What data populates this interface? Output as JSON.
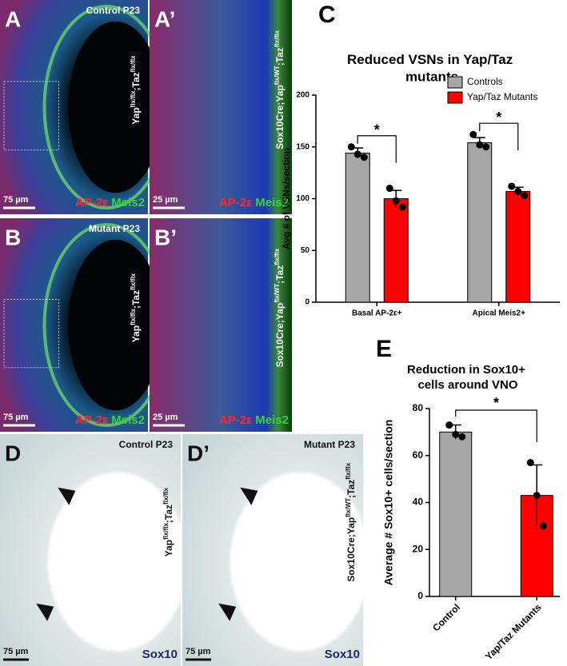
{
  "panels": [
    {
      "letter": "A",
      "title": "Control P23",
      "genotype": [
        "Yap",
        "flx/flx",
        ";Taz",
        "flx/flx"
      ],
      "scale": "75 µm",
      "stain": [
        "AP-2ε",
        "Meis2"
      ]
    },
    {
      "letter": "A’",
      "genotype": [
        "Sox10Cre;Yap",
        "flx/WT",
        ";Taz",
        "flx/flx"
      ],
      "scale": "25 µm",
      "stain": [
        "AP-2ε",
        "Meis2"
      ]
    },
    {
      "letter": "B",
      "title": "Mutant P23",
      "genotype": [
        "Yap",
        "flx/flx",
        ";Taz",
        "flx/flx"
      ],
      "scale": "75 µm",
      "stain": [
        "AP-2ε",
        "Meis2"
      ]
    },
    {
      "letter": "B’",
      "genotype": [
        "Sox10Cre;Yap",
        "flx/WT",
        ";Taz",
        "flx/flx"
      ],
      "scale": "25 µm",
      "stain": [
        "AP-2ε",
        "Meis2"
      ]
    },
    {
      "letter": "D",
      "title": "Control P23",
      "genotype": [
        "Yap",
        "flx/flx",
        ";Taz",
        "flx/flx"
      ],
      "scale": "75 µm",
      "stain": [
        "Sox10"
      ]
    },
    {
      "letter": "D’",
      "title": "Mutant P23",
      "genotype": [
        "Sox10Cre;Yap",
        "flx/WT",
        ";Taz",
        "flx/flx"
      ],
      "scale": "75 µm",
      "stain": [
        "Sox10"
      ]
    }
  ],
  "chart_data": [
    {
      "type": "grouped-bar",
      "letter": "C",
      "title": "Reduced VSNs in Yap/Taz mutants",
      "ylabel": "Avg # of VSNs/section",
      "categories": [
        "Basal AP-2ε+",
        "Apical Meis2+"
      ],
      "series": [
        {
          "name": "Controls",
          "color": "#a6a6a6",
          "values": [
            144,
            154
          ],
          "errors": [
            5,
            5
          ],
          "points": [
            [
              150,
              143,
              140
            ],
            [
              162,
              152,
              150
            ]
          ]
        },
        {
          "name": "Yap/Taz Mutants",
          "color": "#ff0000",
          "values": [
            100,
            107
          ],
          "errors": [
            8,
            4
          ],
          "points": [
            [
              110,
              98,
              92
            ],
            [
              112,
              107,
              103
            ]
          ]
        }
      ],
      "annotations": [
        "*",
        "*"
      ],
      "ylim": [
        0,
        200
      ],
      "yticks": [
        0,
        50,
        100,
        150,
        200
      ],
      "legend": "top-right"
    },
    {
      "type": "bar",
      "letter": "E",
      "title": "Reduction in Sox10+ cells around VNO",
      "ylabel": "Average # Sox10+ cells/section",
      "categories": [
        "Control",
        "Yap/Taz Mutants"
      ],
      "values": [
        70,
        43
      ],
      "errors": [
        3,
        13
      ],
      "points": [
        [
          73,
          69,
          68
        ],
        [
          57,
          43,
          30
        ]
      ],
      "colors": [
        "#a6a6a6",
        "#ff0000"
      ],
      "annotations": [
        "*"
      ],
      "ylim": [
        0,
        80
      ],
      "yticks": [
        0,
        20,
        40,
        60,
        80
      ]
    }
  ]
}
